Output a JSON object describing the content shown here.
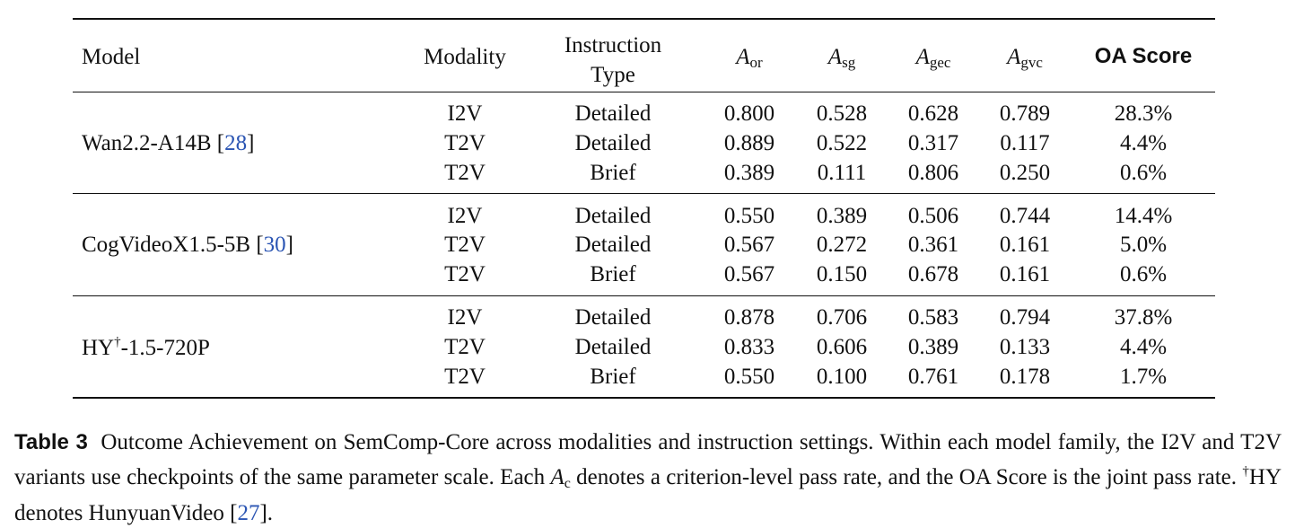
{
  "table": {
    "headers": {
      "model": "Model",
      "modality": "Modality",
      "instruction_line1": "Instruction",
      "instruction_line2": "Type",
      "a_or_main": "A",
      "a_or_sub": "or",
      "a_sg_main": "A",
      "a_sg_sub": "sg",
      "a_gec_main": "A",
      "a_gec_sub": "gec",
      "a_gvc_main": "A",
      "a_gvc_sub": "gvc",
      "oa": "OA Score"
    },
    "groups": [
      {
        "name": "Wan2.2-A14B [",
        "sup": "",
        "name_rest": "",
        "cite": "28",
        "close": "]",
        "rows": [
          {
            "modality": "I2V",
            "instruction": "Detailed",
            "a_or": "0.800",
            "a_sg": "0.528",
            "a_gec": "0.628",
            "a_gvc": "0.789",
            "oa": "28.3%"
          },
          {
            "modality": "T2V",
            "instruction": "Detailed",
            "a_or": "0.889",
            "a_sg": "0.522",
            "a_gec": "0.317",
            "a_gvc": "0.117",
            "oa": "4.4%"
          },
          {
            "modality": "T2V",
            "instruction": "Brief",
            "a_or": "0.389",
            "a_sg": "0.111",
            "a_gec": "0.806",
            "a_gvc": "0.250",
            "oa": "0.6%"
          }
        ]
      },
      {
        "name": "CogVideoX1.5-5B [",
        "sup": "",
        "name_rest": "",
        "cite": "30",
        "close": "]",
        "rows": [
          {
            "modality": "I2V",
            "instruction": "Detailed",
            "a_or": "0.550",
            "a_sg": "0.389",
            "a_gec": "0.506",
            "a_gvc": "0.744",
            "oa": "14.4%"
          },
          {
            "modality": "T2V",
            "instruction": "Detailed",
            "a_or": "0.567",
            "a_sg": "0.272",
            "a_gec": "0.361",
            "a_gvc": "0.161",
            "oa": "5.0%"
          },
          {
            "modality": "T2V",
            "instruction": "Brief",
            "a_or": "0.567",
            "a_sg": "0.150",
            "a_gec": "0.678",
            "a_gvc": "0.161",
            "oa": "0.6%"
          }
        ]
      },
      {
        "name": "HY",
        "sup": "†",
        "name_rest": "-1.5-720P",
        "cite": "",
        "close": "",
        "rows": [
          {
            "modality": "I2V",
            "instruction": "Detailed",
            "a_or": "0.878",
            "a_sg": "0.706",
            "a_gec": "0.583",
            "a_gvc": "0.794",
            "oa": "37.8%"
          },
          {
            "modality": "T2V",
            "instruction": "Detailed",
            "a_or": "0.833",
            "a_sg": "0.606",
            "a_gec": "0.389",
            "a_gvc": "0.133",
            "oa": "4.4%"
          },
          {
            "modality": "T2V",
            "instruction": "Brief",
            "a_or": "0.550",
            "a_sg": "0.100",
            "a_gec": "0.761",
            "a_gvc": "0.178",
            "oa": "1.7%"
          }
        ]
      }
    ]
  },
  "caption": {
    "label": "Table 3",
    "text1": "Outcome Achievement on SemComp-Core across modalities and instruction settings. Within each model family, the I2V and T2V variants use checkpoints of the same parameter scale. Each ",
    "var_main": "A",
    "var_sub": "c",
    "text2": " denotes a criterion-level pass rate, and the OA Score is the joint pass rate. ",
    "dagger": "†",
    "text3": "HY denotes HunyuanVideo [",
    "cite": "27",
    "text4": "]."
  }
}
